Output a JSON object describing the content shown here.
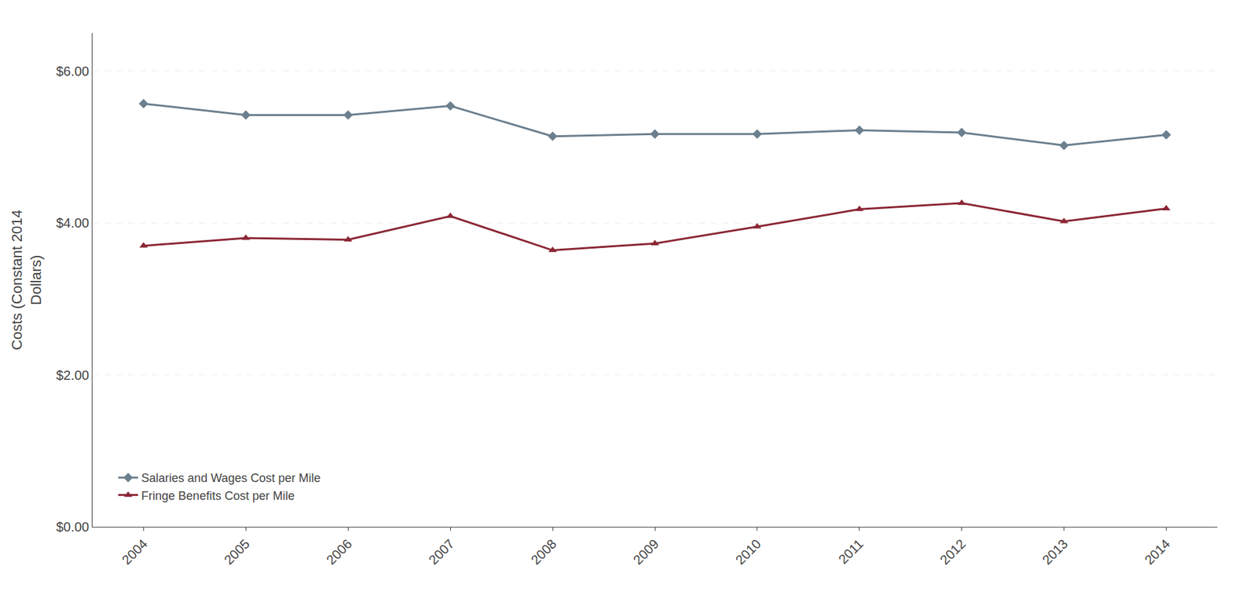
{
  "chart_data": {
    "type": "line",
    "x": [
      2004,
      2005,
      2006,
      2007,
      2008,
      2009,
      2010,
      2011,
      2012,
      2013,
      2014
    ],
    "xlim": [
      2003.5,
      2014.5
    ],
    "xticks": [
      2004,
      2005,
      2006,
      2007,
      2008,
      2009,
      2010,
      2011,
      2012,
      2013,
      2014
    ],
    "ylim": [
      0.0,
      6.5
    ],
    "yticks": [
      {
        "value": 0.0,
        "label": "$0.00"
      },
      {
        "value": 2.0,
        "label": "$2.00"
      },
      {
        "value": 4.0,
        "label": "$4.00"
      },
      {
        "value": 6.0,
        "label": "$6.00"
      }
    ],
    "ylabel": "Costs (Constant 2014\nDollars)",
    "series": [
      {
        "name": "Salaries and Wages Cost per Mile",
        "color": "#6B7F8E",
        "marker": "diamond",
        "values": [
          5.57,
          5.42,
          5.42,
          5.54,
          5.14,
          5.17,
          5.17,
          5.22,
          5.19,
          5.02,
          5.16
        ]
      },
      {
        "name": "Fringe Benefits Cost per Mile",
        "color": "#8B2635",
        "marker": "triangle-up",
        "values": [
          3.7,
          3.8,
          3.78,
          4.09,
          3.64,
          3.73,
          3.95,
          4.18,
          4.26,
          4.02,
          4.19
        ]
      }
    ],
    "grid": true,
    "legend": "lower left"
  }
}
